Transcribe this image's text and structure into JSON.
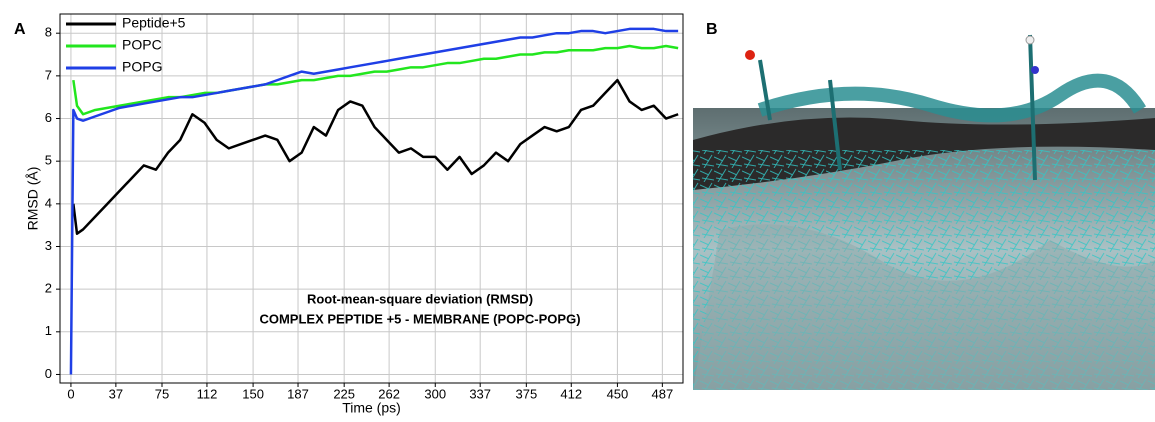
{
  "panel_labels": [
    "A",
    "B"
  ],
  "chart_data": {
    "type": "line",
    "x_label": "Time (ps)",
    "y_label": "RMSD (Å)",
    "annotations": [
      "Root-mean-square deviation (RMSD)",
      "COMPLEX PEPTIDE +5 - MEMBRANE (POPC-POPG)"
    ],
    "x": [
      0,
      2,
      5,
      10,
      20,
      30,
      40,
      50,
      60,
      70,
      80,
      90,
      100,
      110,
      120,
      130,
      140,
      150,
      160,
      170,
      180,
      190,
      200,
      210,
      220,
      230,
      240,
      250,
      260,
      270,
      280,
      290,
      300,
      310,
      320,
      330,
      340,
      350,
      360,
      370,
      380,
      390,
      400,
      410,
      420,
      430,
      440,
      450,
      460,
      470,
      480,
      490,
      500
    ],
    "series": [
      {
        "name": "Peptide+5",
        "color": "#000000",
        "values": [
          null,
          4.0,
          3.3,
          3.4,
          3.7,
          4.0,
          4.3,
          4.6,
          4.9,
          4.8,
          5.2,
          5.5,
          6.1,
          5.9,
          5.5,
          5.3,
          5.4,
          5.5,
          5.6,
          5.5,
          5.0,
          5.2,
          5.8,
          5.6,
          6.2,
          6.4,
          6.3,
          5.8,
          5.5,
          5.2,
          5.3,
          5.1,
          5.1,
          4.8,
          5.1,
          4.7,
          4.9,
          5.2,
          5.0,
          5.4,
          5.6,
          5.8,
          5.7,
          5.8,
          6.2,
          6.3,
          6.6,
          6.9,
          6.4,
          6.2,
          6.3,
          6.0,
          6.1
        ]
      },
      {
        "name": "POPC",
        "color": "#22e61e",
        "values": [
          null,
          6.9,
          6.3,
          6.1,
          6.2,
          6.25,
          6.3,
          6.35,
          6.4,
          6.45,
          6.5,
          6.5,
          6.55,
          6.6,
          6.6,
          6.65,
          6.7,
          6.75,
          6.8,
          6.8,
          6.85,
          6.9,
          6.9,
          6.95,
          7.0,
          7.0,
          7.05,
          7.1,
          7.1,
          7.15,
          7.2,
          7.2,
          7.25,
          7.3,
          7.3,
          7.35,
          7.4,
          7.4,
          7.45,
          7.5,
          7.5,
          7.55,
          7.55,
          7.6,
          7.6,
          7.6,
          7.65,
          7.65,
          7.7,
          7.65,
          7.65,
          7.7,
          7.65
        ]
      },
      {
        "name": "POPG",
        "color": "#1f3fe6",
        "values": [
          0,
          6.2,
          6.0,
          5.95,
          6.05,
          6.15,
          6.25,
          6.3,
          6.35,
          6.4,
          6.45,
          6.5,
          6.5,
          6.55,
          6.6,
          6.65,
          6.7,
          6.75,
          6.8,
          6.9,
          7.0,
          7.1,
          7.05,
          7.1,
          7.15,
          7.2,
          7.25,
          7.3,
          7.35,
          7.4,
          7.45,
          7.5,
          7.55,
          7.6,
          7.65,
          7.7,
          7.75,
          7.8,
          7.85,
          7.9,
          7.9,
          7.95,
          8.0,
          8.0,
          8.05,
          8.05,
          8.0,
          8.05,
          8.1,
          8.1,
          8.1,
          8.05,
          8.05
        ]
      }
    ],
    "xlim": [
      -9,
      504
    ],
    "ylim": [
      -0.2,
      8.45
    ],
    "xticks": [
      0,
      37,
      75,
      112,
      150,
      187,
      225,
      262,
      300,
      337,
      375,
      412,
      450,
      487
    ],
    "yticks": [
      0,
      1,
      2,
      3,
      4,
      5,
      6,
      7,
      8
    ],
    "grid": true,
    "legend": "top-left"
  }
}
